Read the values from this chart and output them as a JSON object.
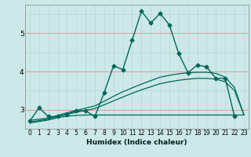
{
  "xlabel": "Humidex (Indice chaleur)",
  "ylabel": "",
  "bg_color": "#cce8e8",
  "grid_color_minor": "#b8d8d8",
  "grid_color_red": "#e09090",
  "line_color": "#006858",
  "xlim": [
    -0.5,
    23.5
  ],
  "ylim": [
    2.5,
    5.75
  ],
  "yticks": [
    3,
    4,
    5
  ],
  "xticks": [
    0,
    1,
    2,
    3,
    4,
    5,
    6,
    7,
    8,
    9,
    10,
    11,
    12,
    13,
    14,
    15,
    16,
    17,
    18,
    19,
    20,
    21,
    22,
    23
  ],
  "series": [
    {
      "x": [
        0,
        1,
        2,
        3,
        4,
        5,
        6,
        7,
        8,
        9,
        10,
        11,
        12,
        13,
        14,
        15,
        16,
        17,
        18,
        19,
        20,
        21,
        22
      ],
      "y": [
        2.7,
        3.05,
        2.82,
        2.82,
        2.88,
        2.97,
        2.97,
        2.82,
        3.45,
        4.15,
        4.05,
        4.82,
        5.58,
        5.27,
        5.52,
        5.22,
        4.47,
        3.97,
        4.17,
        4.12,
        3.82,
        3.82,
        2.82
      ],
      "marker": "D",
      "marker_size": 2.5,
      "linewidth": 1.0,
      "zorder": 4
    },
    {
      "x": [
        0,
        2,
        3,
        4,
        5,
        6,
        7,
        8,
        9,
        10,
        11,
        12,
        13,
        14,
        15,
        16,
        17,
        18,
        19,
        20,
        21,
        22,
        23
      ],
      "y": [
        2.72,
        2.78,
        2.85,
        2.92,
        2.98,
        3.04,
        3.1,
        3.22,
        3.35,
        3.47,
        3.57,
        3.67,
        3.76,
        3.85,
        3.9,
        3.94,
        3.97,
        3.98,
        3.98,
        3.95,
        3.85,
        3.58,
        2.87
      ],
      "marker": null,
      "marker_size": 0,
      "linewidth": 0.9,
      "zorder": 2
    },
    {
      "x": [
        0,
        2,
        3,
        4,
        5,
        6,
        7,
        8,
        9,
        10,
        11,
        12,
        13,
        14,
        15,
        16,
        17,
        18,
        19,
        20,
        21,
        22,
        23
      ],
      "y": [
        2.68,
        2.75,
        2.82,
        2.88,
        2.93,
        2.98,
        3.03,
        3.13,
        3.23,
        3.33,
        3.43,
        3.52,
        3.6,
        3.68,
        3.73,
        3.77,
        3.8,
        3.82,
        3.82,
        3.8,
        3.73,
        3.5,
        2.87
      ],
      "marker": null,
      "marker_size": 0,
      "linewidth": 0.9,
      "zorder": 2
    },
    {
      "x": [
        0,
        2,
        3,
        4,
        5,
        6,
        7,
        8,
        9,
        10,
        11,
        12,
        13,
        14,
        15,
        16,
        17,
        18,
        19,
        20,
        21,
        22,
        23
      ],
      "y": [
        2.65,
        2.73,
        2.79,
        2.83,
        2.85,
        2.86,
        2.86,
        2.86,
        2.86,
        2.86,
        2.86,
        2.86,
        2.86,
        2.86,
        2.86,
        2.86,
        2.86,
        2.86,
        2.86,
        2.86,
        2.86,
        2.86,
        2.86
      ],
      "marker": null,
      "marker_size": 0,
      "linewidth": 0.9,
      "zorder": 2
    }
  ]
}
